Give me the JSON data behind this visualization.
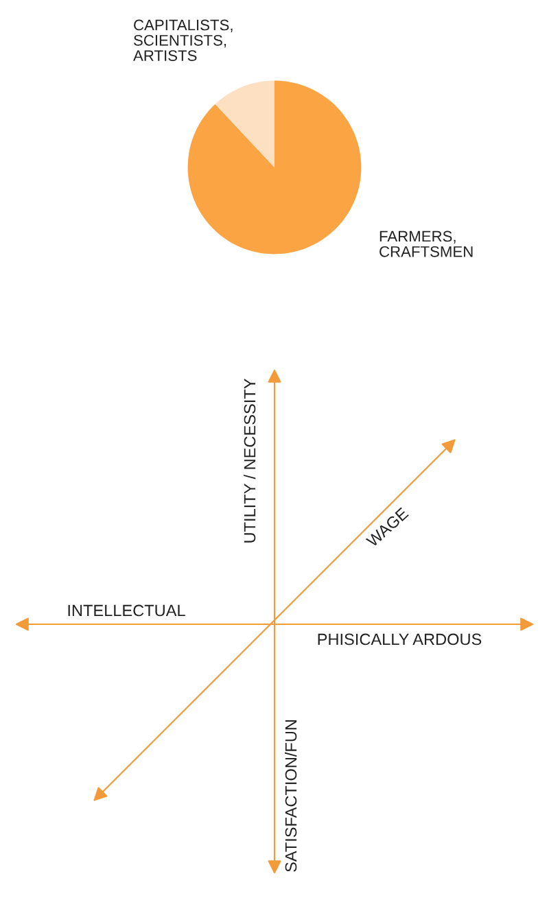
{
  "chart_data": [
    {
      "type": "pie",
      "categories": [
        "FARMERS,\nCRAFTSMEN",
        "CAPITALISTS,\nSCIENTISTS,\nARTISTS"
      ],
      "values": [
        88,
        12
      ],
      "colors": [
        "#fba443",
        "#fde0c2"
      ]
    },
    {
      "type": "other",
      "annotations": [
        "UTILITY / NECESSITY",
        "WAGE",
        "INTELLECTUAL",
        "PHISICALLY ARDOUS",
        "SATISFACTION/FUN"
      ]
    }
  ]
}
